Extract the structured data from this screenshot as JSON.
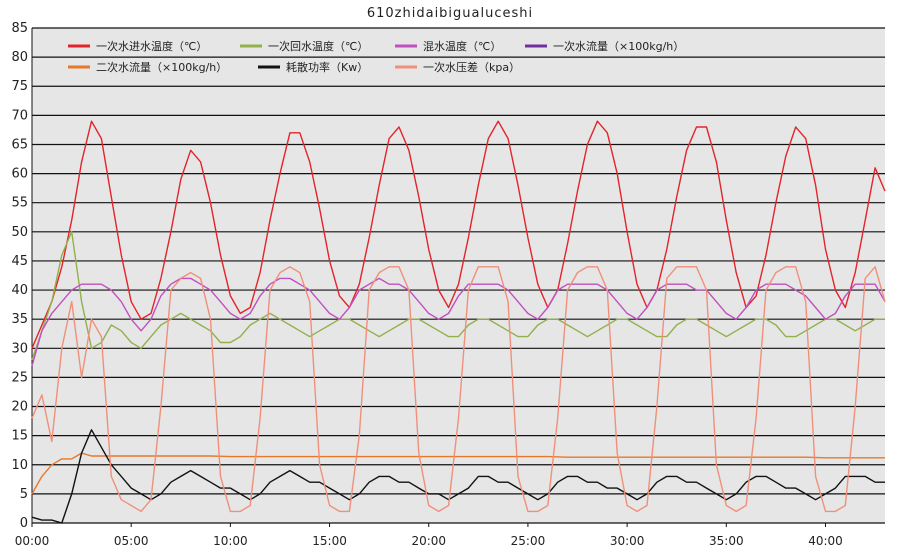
{
  "chart_data": {
    "type": "line",
    "title": "610zhidaibigualuceshi",
    "x_unit": "minutes",
    "xlim": [
      0,
      43
    ],
    "ylim": [
      0,
      85
    ],
    "y_ticks": [
      0,
      5,
      10,
      15,
      20,
      25,
      30,
      35,
      40,
      45,
      50,
      55,
      60,
      65,
      70,
      75,
      80,
      85
    ],
    "x_ticks": [
      {
        "value": 0,
        "label": "00:00"
      },
      {
        "value": 5,
        "label": "05:00"
      },
      {
        "value": 10,
        "label": "10:00"
      },
      {
        "value": 15,
        "label": "15:00"
      },
      {
        "value": 20,
        "label": "20:00"
      },
      {
        "value": 25,
        "label": "25:00"
      },
      {
        "value": 30,
        "label": "30:00"
      },
      {
        "value": 35,
        "label": "35:00"
      },
      {
        "value": 40,
        "label": "40:00"
      }
    ],
    "grid": true,
    "legend_position": "top",
    "background": "#e6e6e6",
    "series": [
      {
        "name": "一次水进水温度（℃）",
        "color": "#e3242b",
        "x": [
          0,
          0.5,
          1,
          1.5,
          2,
          2.5,
          3,
          3.5,
          4,
          4.5,
          5,
          5.5,
          6,
          6.5,
          7,
          7.5,
          8,
          8.5,
          9,
          9.5,
          10,
          10.5,
          11,
          11.5,
          12,
          12.5,
          13,
          13.5,
          14,
          14.5,
          15,
          15.5,
          16,
          16.5,
          17,
          17.5,
          18,
          18.5,
          19,
          19.5,
          20,
          20.5,
          21,
          21.5,
          22,
          22.5,
          23,
          23.5,
          24,
          24.5,
          25,
          25.5,
          26,
          26.5,
          27,
          27.5,
          28,
          28.5,
          29,
          29.5,
          30,
          30.5,
          31,
          31.5,
          32,
          32.5,
          33,
          33.5,
          34,
          34.5,
          35,
          35.5,
          36,
          36.5,
          37,
          37.5,
          38,
          38.5,
          39,
          39.5,
          40,
          40.5,
          41,
          41.5,
          42,
          42.5,
          43
        ],
        "values": [
          30,
          34,
          38,
          44,
          52,
          62,
          69,
          66,
          56,
          46,
          38,
          35,
          36,
          42,
          50,
          59,
          64,
          62,
          55,
          46,
          39,
          36,
          37,
          43,
          52,
          60,
          67,
          67,
          62,
          54,
          45,
          39,
          37,
          41,
          49,
          58,
          66,
          68,
          64,
          56,
          47,
          40,
          37,
          41,
          49,
          58,
          66,
          69,
          66,
          58,
          49,
          41,
          37,
          40,
          48,
          57,
          65,
          69,
          67,
          60,
          50,
          41,
          37,
          40,
          47,
          56,
          64,
          68,
          68,
          62,
          52,
          43,
          37,
          39,
          46,
          55,
          63,
          68,
          66,
          58,
          47,
          40,
          37,
          43,
          52,
          61,
          57
        ]
      },
      {
        "name": "一次回水温度（℃）",
        "color": "#92b04c",
        "x": [
          0,
          0.5,
          1,
          1.5,
          2,
          2.5,
          3,
          3.5,
          4,
          4.5,
          5,
          5.5,
          6,
          6.5,
          7,
          7.5,
          8,
          8.5,
          9,
          9.5,
          10,
          10.5,
          11,
          11.5,
          12,
          12.5,
          13,
          13.5,
          14,
          14.5,
          15,
          15.5,
          16,
          16.5,
          17,
          17.5,
          18,
          18.5,
          19,
          19.5,
          20,
          20.5,
          21,
          21.5,
          22,
          22.5,
          23,
          23.5,
          24,
          24.5,
          25,
          25.5,
          26,
          26.5,
          27,
          27.5,
          28,
          28.5,
          29,
          29.5,
          30,
          30.5,
          31,
          31.5,
          32,
          32.5,
          33,
          33.5,
          34,
          34.5,
          35,
          35.5,
          36,
          36.5,
          37,
          37.5,
          38,
          38.5,
          39,
          39.5,
          40,
          40.5,
          41,
          41.5,
          42,
          42.5,
          43
        ],
        "values": [
          28,
          33,
          38,
          46,
          50,
          38,
          30,
          31,
          34,
          33,
          31,
          30,
          32,
          34,
          35,
          36,
          35,
          34,
          33,
          31,
          31,
          32,
          34,
          35,
          36,
          35,
          34,
          33,
          32,
          33,
          34,
          35,
          35,
          34,
          33,
          32,
          33,
          34,
          35,
          35,
          34,
          33,
          32,
          32,
          34,
          35,
          35,
          34,
          33,
          32,
          32,
          34,
          35,
          35,
          34,
          33,
          32,
          33,
          34,
          35,
          35,
          34,
          33,
          32,
          32,
          34,
          35,
          35,
          34,
          33,
          32,
          33,
          34,
          35,
          35,
          34,
          32,
          32,
          33,
          34,
          35,
          35,
          34,
          33,
          34,
          35,
          35
        ]
      },
      {
        "name": "混水温度（℃）",
        "color": "#c050c0",
        "x": [
          0,
          0.5,
          1,
          1.5,
          2,
          2.5,
          3,
          3.5,
          4,
          4.5,
          5,
          5.5,
          6,
          6.5,
          7,
          7.5,
          8,
          8.5,
          9,
          9.5,
          10,
          10.5,
          11,
          11.5,
          12,
          12.5,
          13,
          13.5,
          14,
          14.5,
          15,
          15.5,
          16,
          16.5,
          17,
          17.5,
          18,
          18.5,
          19,
          19.5,
          20,
          20.5,
          21,
          21.5,
          22,
          22.5,
          23,
          23.5,
          24,
          24.5,
          25,
          25.5,
          26,
          26.5,
          27,
          27.5,
          28,
          28.5,
          29,
          29.5,
          30,
          30.5,
          31,
          31.5,
          32,
          32.5,
          33,
          33.5,
          34,
          34.5,
          35,
          35.5,
          36,
          36.5,
          37,
          37.5,
          38,
          38.5,
          39,
          39.5,
          40,
          40.5,
          41,
          41.5,
          42,
          42.5,
          43
        ],
        "values": [
          27,
          33,
          36,
          38,
          40,
          41,
          41,
          41,
          40,
          38,
          35,
          33,
          35,
          39,
          41,
          42,
          42,
          41,
          40,
          38,
          36,
          35,
          36,
          39,
          41,
          42,
          42,
          41,
          40,
          38,
          36,
          35,
          37,
          40,
          41,
          42,
          41,
          41,
          40,
          38,
          36,
          35,
          36,
          39,
          41,
          41,
          41,
          41,
          40,
          38,
          36,
          35,
          37,
          40,
          41,
          41,
          41,
          41,
          40,
          38,
          36,
          35,
          37,
          40,
          41,
          41,
          41,
          40,
          40,
          38,
          36,
          35,
          37,
          40,
          41,
          41,
          41,
          40,
          39,
          37,
          35,
          36,
          39,
          41,
          41,
          41,
          38
        ]
      },
      {
        "name": "一次水流量（×100kg/h）",
        "color": "#7030a0",
        "x": [],
        "values": []
      },
      {
        "name": "二次水流量（×100kg/h）",
        "color": "#e8782a",
        "x": [
          0,
          0.5,
          1,
          1.5,
          2,
          2.5,
          3,
          3.5,
          4,
          4.5,
          5,
          6,
          7,
          8,
          9,
          10,
          11,
          12,
          13,
          14,
          15,
          16,
          17,
          18,
          19,
          20,
          21,
          22,
          23,
          24,
          25,
          26,
          27,
          28,
          29,
          30,
          31,
          32,
          33,
          34,
          35,
          36,
          37,
          38,
          39,
          40,
          41,
          42,
          43
        ],
        "values": [
          5,
          8,
          10,
          11,
          11,
          12,
          11.5,
          11.5,
          11.5,
          11.5,
          11.5,
          11.5,
          11.5,
          11.5,
          11.5,
          11.4,
          11.4,
          11.4,
          11.4,
          11.4,
          11.4,
          11.4,
          11.4,
          11.4,
          11.4,
          11.4,
          11.4,
          11.4,
          11.4,
          11.4,
          11.4,
          11.4,
          11.3,
          11.3,
          11.3,
          11.3,
          11.3,
          11.3,
          11.3,
          11.3,
          11.3,
          11.3,
          11.3,
          11.3,
          11.3,
          11.2,
          11.2,
          11.2,
          11.2
        ]
      },
      {
        "name": "耗散功率（Kw）",
        "color": "#111111",
        "x": [
          0,
          0.5,
          1,
          1.5,
          2,
          2.5,
          3,
          3.5,
          4,
          4.5,
          5,
          5.5,
          6,
          6.5,
          7,
          7.5,
          8,
          8.5,
          9,
          9.5,
          10,
          10.5,
          11,
          11.5,
          12,
          12.5,
          13,
          13.5,
          14,
          14.5,
          15,
          15.5,
          16,
          16.5,
          17,
          17.5,
          18,
          18.5,
          19,
          19.5,
          20,
          20.5,
          21,
          21.5,
          22,
          22.5,
          23,
          23.5,
          24,
          24.5,
          25,
          25.5,
          26,
          26.5,
          27,
          27.5,
          28,
          28.5,
          29,
          29.5,
          30,
          30.5,
          31,
          31.5,
          32,
          32.5,
          33,
          33.5,
          34,
          34.5,
          35,
          35.5,
          36,
          36.5,
          37,
          37.5,
          38,
          38.5,
          39,
          39.5,
          40,
          40.5,
          41,
          41.5,
          42,
          42.5,
          43
        ],
        "values": [
          1,
          0.5,
          0.5,
          0,
          5,
          12,
          16,
          13,
          10,
          8,
          6,
          5,
          4,
          5,
          7,
          8,
          9,
          8,
          7,
          6,
          6,
          5,
          4,
          5,
          7,
          8,
          9,
          8,
          7,
          7,
          6,
          5,
          4,
          5,
          7,
          8,
          8,
          7,
          7,
          6,
          5,
          5,
          4,
          5,
          6,
          8,
          8,
          7,
          7,
          6,
          5,
          4,
          5,
          7,
          8,
          8,
          7,
          7,
          6,
          6,
          5,
          4,
          5,
          7,
          8,
          8,
          7,
          7,
          6,
          5,
          4,
          5,
          7,
          8,
          8,
          7,
          6,
          6,
          5,
          4,
          5,
          6,
          8,
          8,
          8,
          7,
          7
        ]
      },
      {
        "name": "一次水压差（kpa）",
        "color": "#f0907a",
        "x": [
          0,
          0.5,
          1,
          1.5,
          2,
          2.5,
          3,
          3.5,
          4,
          4.5,
          5,
          5.5,
          6,
          6.5,
          7,
          7.5,
          8,
          8.5,
          9,
          9.5,
          10,
          10.5,
          11,
          11.5,
          12,
          12.5,
          13,
          13.5,
          14,
          14.5,
          15,
          15.5,
          16,
          16.5,
          17,
          17.5,
          18,
          18.5,
          19,
          19.5,
          20,
          20.5,
          21,
          21.5,
          22,
          22.5,
          23,
          23.5,
          24,
          24.5,
          25,
          25.5,
          26,
          26.5,
          27,
          27.5,
          28,
          28.5,
          29,
          29.5,
          30,
          30.5,
          31,
          31.5,
          32,
          32.5,
          33,
          33.5,
          34,
          34.5,
          35,
          35.5,
          36,
          36.5,
          37,
          37.5,
          38,
          38.5,
          39,
          39.5,
          40,
          40.5,
          41,
          41.5,
          42,
          42.5,
          43
        ],
        "values": [
          18,
          22,
          14,
          30,
          38,
          25,
          35,
          32,
          8,
          4,
          3,
          2,
          4,
          20,
          40,
          42,
          43,
          42,
          35,
          8,
          2,
          2,
          3,
          18,
          40,
          43,
          44,
          43,
          38,
          10,
          3,
          2,
          2,
          15,
          40,
          43,
          44,
          44,
          40,
          12,
          3,
          2,
          3,
          18,
          40,
          44,
          44,
          44,
          38,
          8,
          2,
          2,
          3,
          18,
          40,
          43,
          44,
          44,
          40,
          12,
          3,
          2,
          3,
          20,
          42,
          44,
          44,
          44,
          40,
          10,
          3,
          2,
          3,
          18,
          40,
          43,
          44,
          44,
          38,
          8,
          2,
          2,
          3,
          20,
          42,
          44,
          38
        ]
      }
    ]
  }
}
